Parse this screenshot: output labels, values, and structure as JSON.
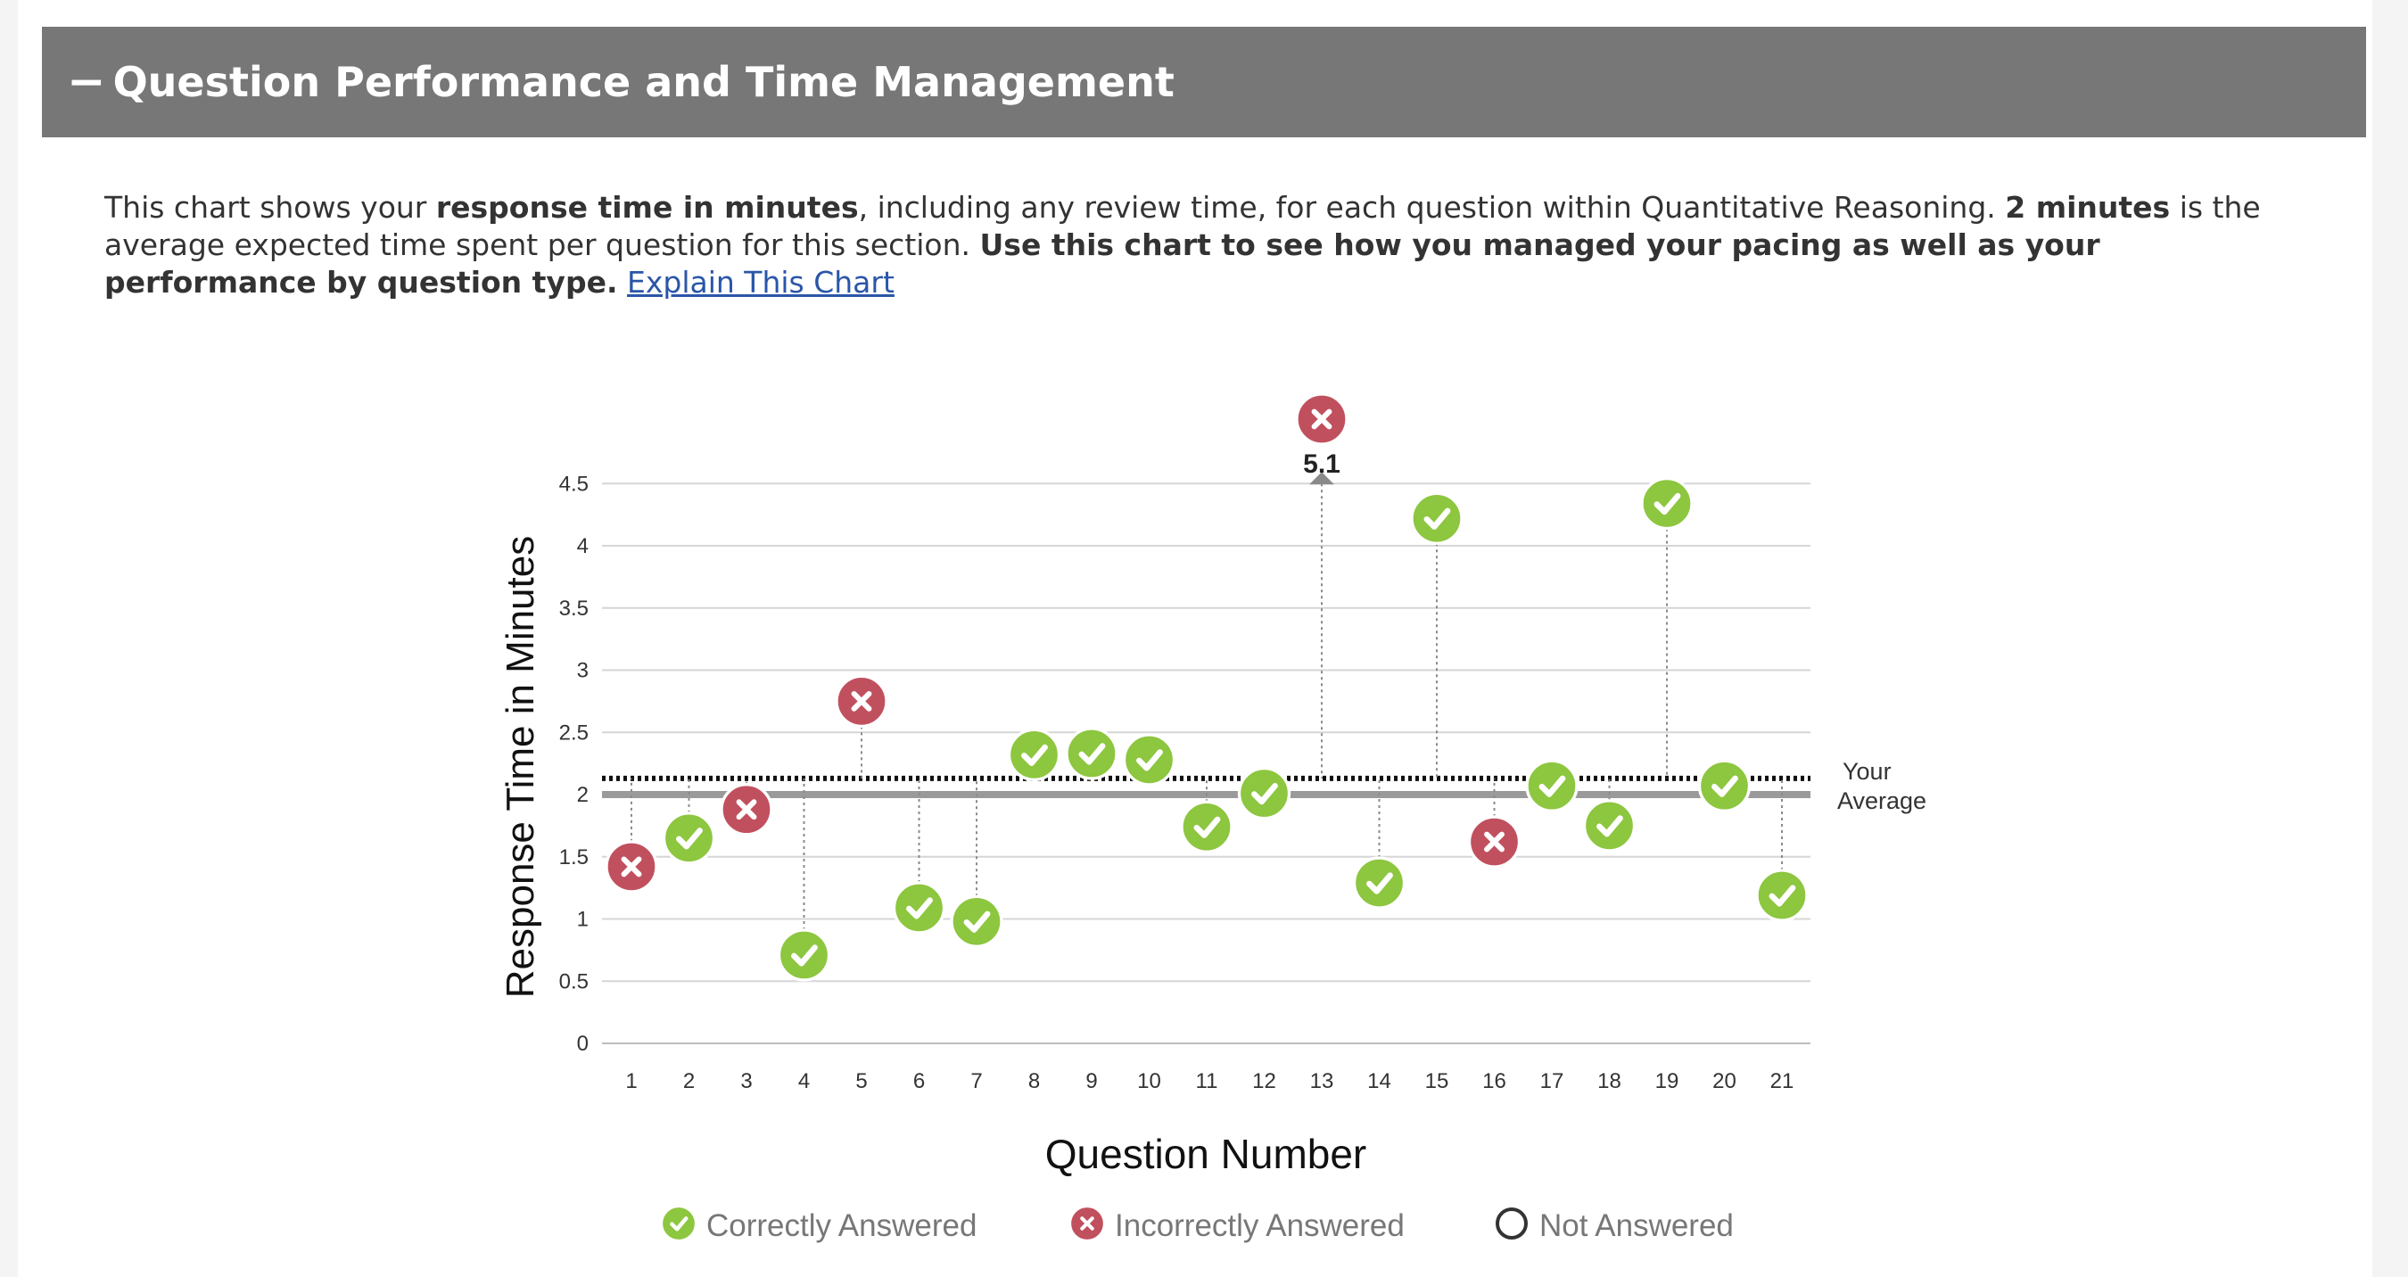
{
  "header": {
    "collapse_symbol": "−",
    "title": "Question Performance and Time Management"
  },
  "description": {
    "p1": "This chart shows your ",
    "b1": "response time in minutes",
    "p2": ", including any review time, for each question within Quantitative Reasoning. ",
    "b2": "2 minutes",
    "p3": " is the average expected time spent per question for this section. ",
    "b3": "Use this chart to see how you managed your pacing as well as your performance by question type.",
    "link": "Explain This Chart"
  },
  "colors": {
    "correct": "#8dc63f",
    "incorrect": "#c1505e",
    "grid": "#d6d6d6",
    "header_bg": "#777777"
  },
  "legend": {
    "correct": "Correctly Answered",
    "incorrect": "Incorrectly Answered",
    "not_answered": "Not Answered"
  },
  "chart_data": {
    "type": "scatter",
    "title": "",
    "xlabel": "Question Number",
    "ylabel": "Response Time in Minutes",
    "ylim": [
      0,
      4.5
    ],
    "y_ticks": [
      0,
      0.5,
      1,
      1.5,
      2,
      2.5,
      3,
      3.5,
      4,
      4.5
    ],
    "y_tick_labels": [
      "0",
      "0.5",
      "1",
      "1.5",
      "2",
      "2.5",
      "3",
      "3.5",
      "4",
      "4.5"
    ],
    "expected_time": 2,
    "your_average": 2.13,
    "your_average_label": [
      "Your",
      "Average"
    ],
    "overflow_label": "5.1",
    "points": [
      {
        "q": "1",
        "time": 1.42,
        "status": "incorrect"
      },
      {
        "q": "2",
        "time": 1.65,
        "status": "correct"
      },
      {
        "q": "3",
        "time": 1.88,
        "status": "incorrect"
      },
      {
        "q": "4",
        "time": 0.71,
        "status": "correct"
      },
      {
        "q": "5",
        "time": 2.75,
        "status": "incorrect"
      },
      {
        "q": "6",
        "time": 1.09,
        "status": "correct"
      },
      {
        "q": "7",
        "time": 0.98,
        "status": "correct"
      },
      {
        "q": "8",
        "time": 2.32,
        "status": "correct"
      },
      {
        "q": "9",
        "time": 2.33,
        "status": "correct"
      },
      {
        "q": "10",
        "time": 2.28,
        "status": "correct"
      },
      {
        "q": "11",
        "time": 1.74,
        "status": "correct"
      },
      {
        "q": "12",
        "time": 2.01,
        "status": "correct"
      },
      {
        "q": "13",
        "time": 5.1,
        "status": "incorrect"
      },
      {
        "q": "14",
        "time": 1.29,
        "status": "correct"
      },
      {
        "q": "15",
        "time": 4.22,
        "status": "correct"
      },
      {
        "q": "16",
        "time": 1.62,
        "status": "incorrect"
      },
      {
        "q": "17",
        "time": 2.07,
        "status": "correct"
      },
      {
        "q": "18",
        "time": 1.75,
        "status": "correct"
      },
      {
        "q": "19",
        "time": 4.34,
        "status": "correct"
      },
      {
        "q": "20",
        "time": 2.07,
        "status": "correct"
      },
      {
        "q": "21",
        "time": 1.19,
        "status": "correct"
      }
    ]
  }
}
